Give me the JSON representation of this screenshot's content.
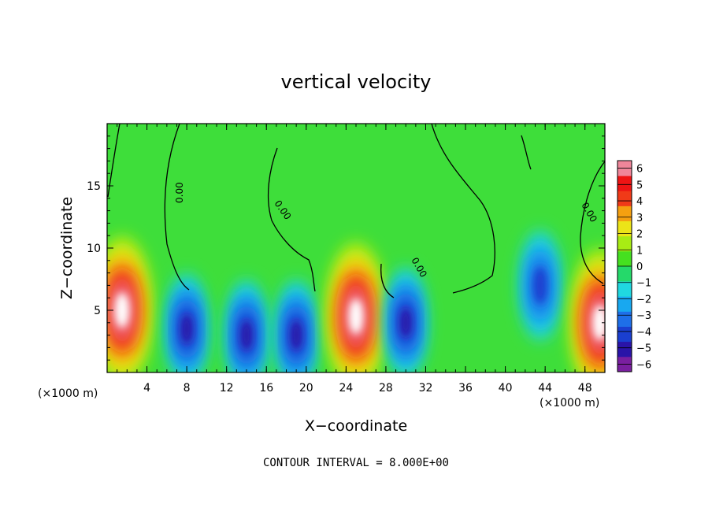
{
  "chart_data": {
    "type": "heatmap",
    "title": "vertical velocity",
    "xlabel": "X−coordinate",
    "ylabel": "Z−coordinate",
    "x_unit": "(×1000 m)",
    "xlim": [
      0,
      50
    ],
    "ylim": [
      0,
      20
    ],
    "x_ticks": [
      4,
      8,
      12,
      16,
      20,
      24,
      28,
      32,
      36,
      40,
      44,
      48
    ],
    "y_ticks": [
      5,
      10,
      15
    ],
    "colorbar": {
      "ticks": [
        6,
        5,
        4,
        3,
        2,
        1,
        0,
        -1,
        -2,
        -3,
        -4,
        -5,
        -6
      ],
      "tick_labels": [
        "6",
        "5",
        "4",
        "3",
        "2",
        "1",
        "0",
        "−1",
        "−2",
        "−3",
        "−4",
        "−5",
        "−6"
      ],
      "colors": [
        "#7a1fa0",
        "#2a14a8",
        "#1a3fd0",
        "#1e6fe8",
        "#18a8f0",
        "#20d8e0",
        "#25d96a",
        "#45e020",
        "#a8ec14",
        "#ece418",
        "#f5a010",
        "#f03a18",
        "#ee1414",
        "#f0869a"
      ]
    },
    "contour_label": "0.00",
    "contour_interval_text": "CONTOUR INTERVAL = 8.000E+00",
    "features": [
      {
        "x": 1.5,
        "z": 5.0,
        "value": 8
      },
      {
        "x": 8.0,
        "z": 3.5,
        "value": -7
      },
      {
        "x": 14.0,
        "z": 3.0,
        "value": -6
      },
      {
        "x": 19.0,
        "z": 3.0,
        "value": -7
      },
      {
        "x": 25.0,
        "z": 4.5,
        "value": 8
      },
      {
        "x": 30.0,
        "z": 4.0,
        "value": -6
      },
      {
        "x": 43.5,
        "z": 7.0,
        "value": -5
      },
      {
        "x": 49.5,
        "z": 4.0,
        "value": 8
      }
    ]
  }
}
